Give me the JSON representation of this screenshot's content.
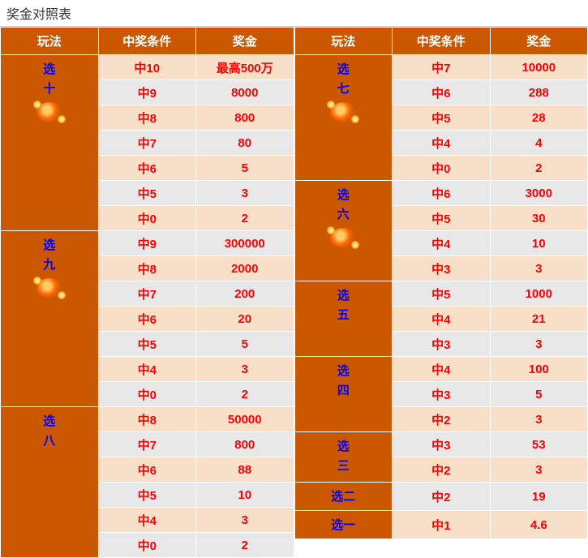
{
  "title": "奖金对照表",
  "headers": {
    "play": "玩法",
    "condition": "中奖条件",
    "prize": "奖金"
  },
  "colors": {
    "header_bg": "#cb5800",
    "header_text": "#ffffff",
    "play_text": "#0000ff",
    "value_text": "#ff0000",
    "row_even_bg": "#f8e0c8",
    "row_odd_bg": "#e8e8e8"
  },
  "left": [
    {
      "name": [
        "选",
        "十"
      ],
      "icon": true,
      "rows": [
        {
          "c": "中10",
          "p": "最高500万"
        },
        {
          "c": "中9",
          "p": "8000"
        },
        {
          "c": "中8",
          "p": "800"
        },
        {
          "c": "中7",
          "p": "80"
        },
        {
          "c": "中6",
          "p": "5"
        },
        {
          "c": "中5",
          "p": "3"
        },
        {
          "c": "中0",
          "p": "2"
        }
      ]
    },
    {
      "name": [
        "选",
        "九"
      ],
      "icon": true,
      "rows": [
        {
          "c": "中9",
          "p": "300000"
        },
        {
          "c": "中8",
          "p": "2000"
        },
        {
          "c": "中7",
          "p": "200"
        },
        {
          "c": "中6",
          "p": "20"
        },
        {
          "c": "中5",
          "p": "5"
        },
        {
          "c": "中4",
          "p": "3"
        },
        {
          "c": "中0",
          "p": "2"
        }
      ]
    },
    {
      "name": [
        "选",
        "八"
      ],
      "icon": false,
      "rows": [
        {
          "c": "中8",
          "p": "50000"
        },
        {
          "c": "中7",
          "p": "800"
        },
        {
          "c": "中6",
          "p": "88"
        },
        {
          "c": "中5",
          "p": "10"
        },
        {
          "c": "中4",
          "p": "3"
        },
        {
          "c": "中0",
          "p": "2"
        }
      ]
    }
  ],
  "right": [
    {
      "name": [
        "选",
        "七"
      ],
      "icon": true,
      "rows": [
        {
          "c": "中7",
          "p": "10000"
        },
        {
          "c": "中6",
          "p": "288"
        },
        {
          "c": "中5",
          "p": "28"
        },
        {
          "c": "中4",
          "p": "4"
        },
        {
          "c": "中0",
          "p": "2"
        }
      ]
    },
    {
      "name": [
        "选",
        "六"
      ],
      "icon": true,
      "rows": [
        {
          "c": "中6",
          "p": "3000"
        },
        {
          "c": "中5",
          "p": "30"
        },
        {
          "c": "中4",
          "p": "10"
        },
        {
          "c": "中3",
          "p": "3"
        }
      ]
    },
    {
      "name": [
        "选",
        "五"
      ],
      "icon": false,
      "rows": [
        {
          "c": "中5",
          "p": "1000"
        },
        {
          "c": "中4",
          "p": "21"
        },
        {
          "c": "中3",
          "p": "3"
        }
      ]
    },
    {
      "name": [
        "选",
        "四"
      ],
      "icon": false,
      "rows": [
        {
          "c": "中4",
          "p": "100"
        },
        {
          "c": "中3",
          "p": "5"
        },
        {
          "c": "中2",
          "p": "3"
        }
      ]
    },
    {
      "name": [
        "选",
        "三"
      ],
      "icon": false,
      "rows": [
        {
          "c": "中3",
          "p": "53"
        },
        {
          "c": "中2",
          "p": "3"
        }
      ]
    },
    {
      "name": [
        "选二"
      ],
      "icon": false,
      "rows": [
        {
          "c": "中2",
          "p": "19"
        }
      ]
    },
    {
      "name": [
        "选一"
      ],
      "icon": false,
      "rows": [
        {
          "c": "中1",
          "p": "4.6"
        }
      ]
    }
  ]
}
